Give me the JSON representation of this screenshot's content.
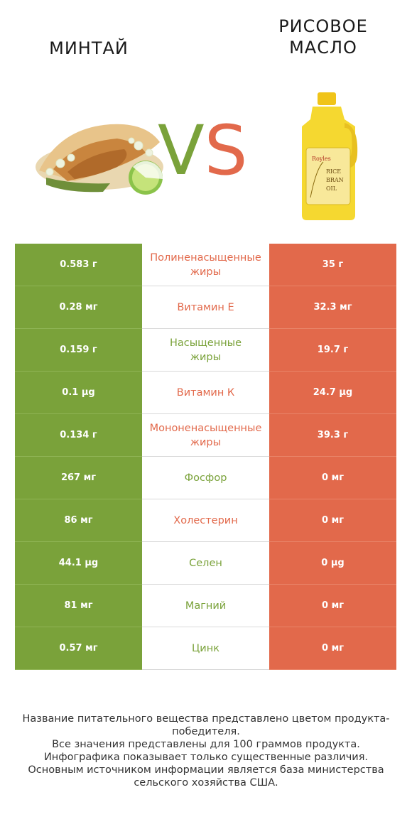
{
  "header": {
    "left_title": "МИНТАЙ",
    "right_title": "РИСОВОЕ\nМАСЛО",
    "vs_v": "V",
    "vs_s": "S"
  },
  "colors": {
    "left": "#7aa23a",
    "right": "#e2694b"
  },
  "bottle_label": {
    "brand": "Royles",
    "line1": "RICE",
    "line2": "BRAN",
    "line3": "OIL"
  },
  "rows": [
    {
      "left": "0.583 г",
      "nutrient": "Полиненасыщенные\nжиры",
      "right": "35 г",
      "winner": "right"
    },
    {
      "left": "0.28 мг",
      "nutrient": "Витамин E",
      "right": "32.3 мг",
      "winner": "right"
    },
    {
      "left": "0.159 г",
      "nutrient": "Насыщенные\nжиры",
      "right": "19.7 г",
      "winner": "left"
    },
    {
      "left": "0.1 µg",
      "nutrient": "Витамин К",
      "right": "24.7 µg",
      "winner": "right"
    },
    {
      "left": "0.134 г",
      "nutrient": "Мононенасыщенные\nжиры",
      "right": "39.3 г",
      "winner": "right"
    },
    {
      "left": "267 мг",
      "nutrient": "Фосфор",
      "right": "0 мг",
      "winner": "left"
    },
    {
      "left": "86 мг",
      "nutrient": "Холестерин",
      "right": "0 мг",
      "winner": "right"
    },
    {
      "left": "44.1 µg",
      "nutrient": "Селен",
      "right": "0 µg",
      "winner": "left"
    },
    {
      "left": "81 мг",
      "nutrient": "Магний",
      "right": "0 мг",
      "winner": "left"
    },
    {
      "left": "0.57 мг",
      "nutrient": "Цинк",
      "right": "0 мг",
      "winner": "left"
    }
  ],
  "footer": [
    "Название питательного вещества представлено цветом продукта-победителя.",
    "Все значения представлены для 100 граммов продукта.",
    "Инфографика показывает только существенные различия.",
    "Основным источником информации является база министерства сельского хозяйства США."
  ]
}
